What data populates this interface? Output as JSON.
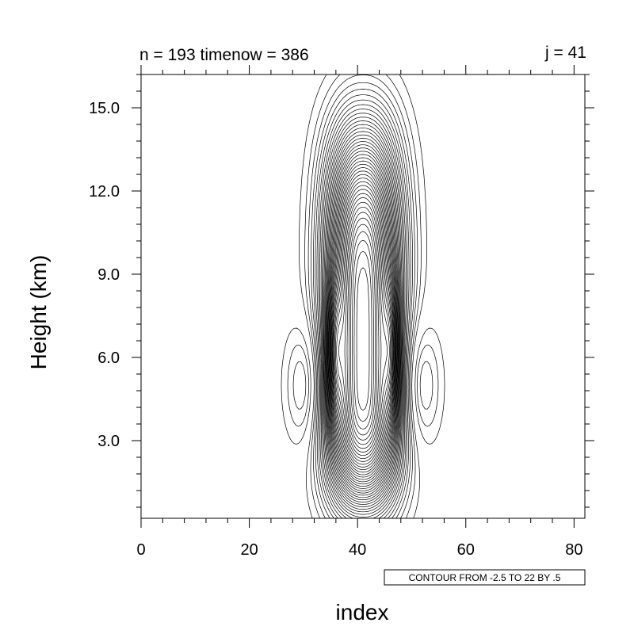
{
  "chart_data": {
    "type": "contour",
    "subtitle_left": "n = 193 timenow = 386",
    "subtitle_right": "j = 41",
    "xlabel": "index",
    "ylabel": "Height (km)",
    "xlim": [
      0,
      82
    ],
    "ylim": [
      0.2,
      16.2
    ],
    "x_ticks": [
      0,
      20,
      40,
      60,
      80
    ],
    "x_tick_labels": [
      "0",
      "20",
      "40",
      "60",
      "80"
    ],
    "y_ticks": [
      3.0,
      6.0,
      9.0,
      12.0,
      15.0
    ],
    "y_tick_labels": [
      "3.0",
      "6.0",
      "9.0",
      "12.0",
      "15.0"
    ],
    "contour_info": "CONTOUR FROM -2.5 TO 22 BY .5",
    "contour_min": -2.5,
    "contour_max": 22,
    "contour_interval": 0.5,
    "positive_center": {
      "x": 41,
      "y": 6.2
    },
    "negative_lobes": [
      {
        "x": 31,
        "y": 5.0
      },
      {
        "x": 51,
        "y": 5.0
      }
    ],
    "line_color": "#000000",
    "negative_line_style": "dashed"
  }
}
